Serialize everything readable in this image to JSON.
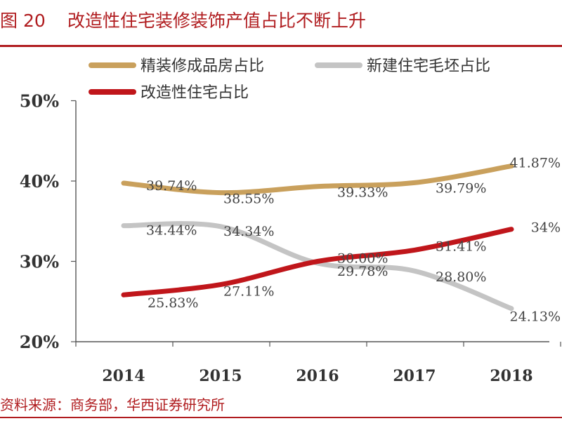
{
  "header": {
    "figure_number": "图 20",
    "title": "改造性住宅装修装饰产值占比不断上升"
  },
  "footer": {
    "source": "资料来源：商务部，华西证券研究所"
  },
  "colors": {
    "accent": "#b01c1f",
    "series_finished": "#c9a05c",
    "series_rough": "#c4c4c4",
    "series_renovation": "#c0161b"
  },
  "chart_data": {
    "type": "line",
    "x": [
      "2014",
      "2015",
      "2016",
      "2017",
      "2018"
    ],
    "ylim": [
      20,
      50
    ],
    "yticks": [
      20,
      30,
      40,
      50
    ],
    "yticklabels": [
      "20%",
      "30%",
      "40%",
      "50%"
    ],
    "grid": false,
    "legend_position": "top",
    "series": [
      {
        "name": "精装修成品房占比",
        "color": "#c9a05c",
        "values": [
          39.74,
          38.55,
          39.33,
          39.79,
          41.87
        ],
        "labels": [
          "39.74%",
          "38.55%",
          "39.33%",
          "39.79%",
          "41.87%"
        ]
      },
      {
        "name": "新建住宅毛坯占比",
        "color": "#c4c4c4",
        "values": [
          34.44,
          34.34,
          29.78,
          28.8,
          24.13
        ],
        "labels": [
          "34.44%",
          "34.34%",
          "29.78%",
          "28.80%",
          "24.13%"
        ]
      },
      {
        "name": "改造性住宅占比",
        "color": "#c0161b",
        "values": [
          25.83,
          27.11,
          30.0,
          31.41,
          34.0
        ],
        "labels": [
          "25.83%",
          "27.11%",
          "30.00%",
          "31.41%",
          "34%"
        ]
      }
    ]
  }
}
